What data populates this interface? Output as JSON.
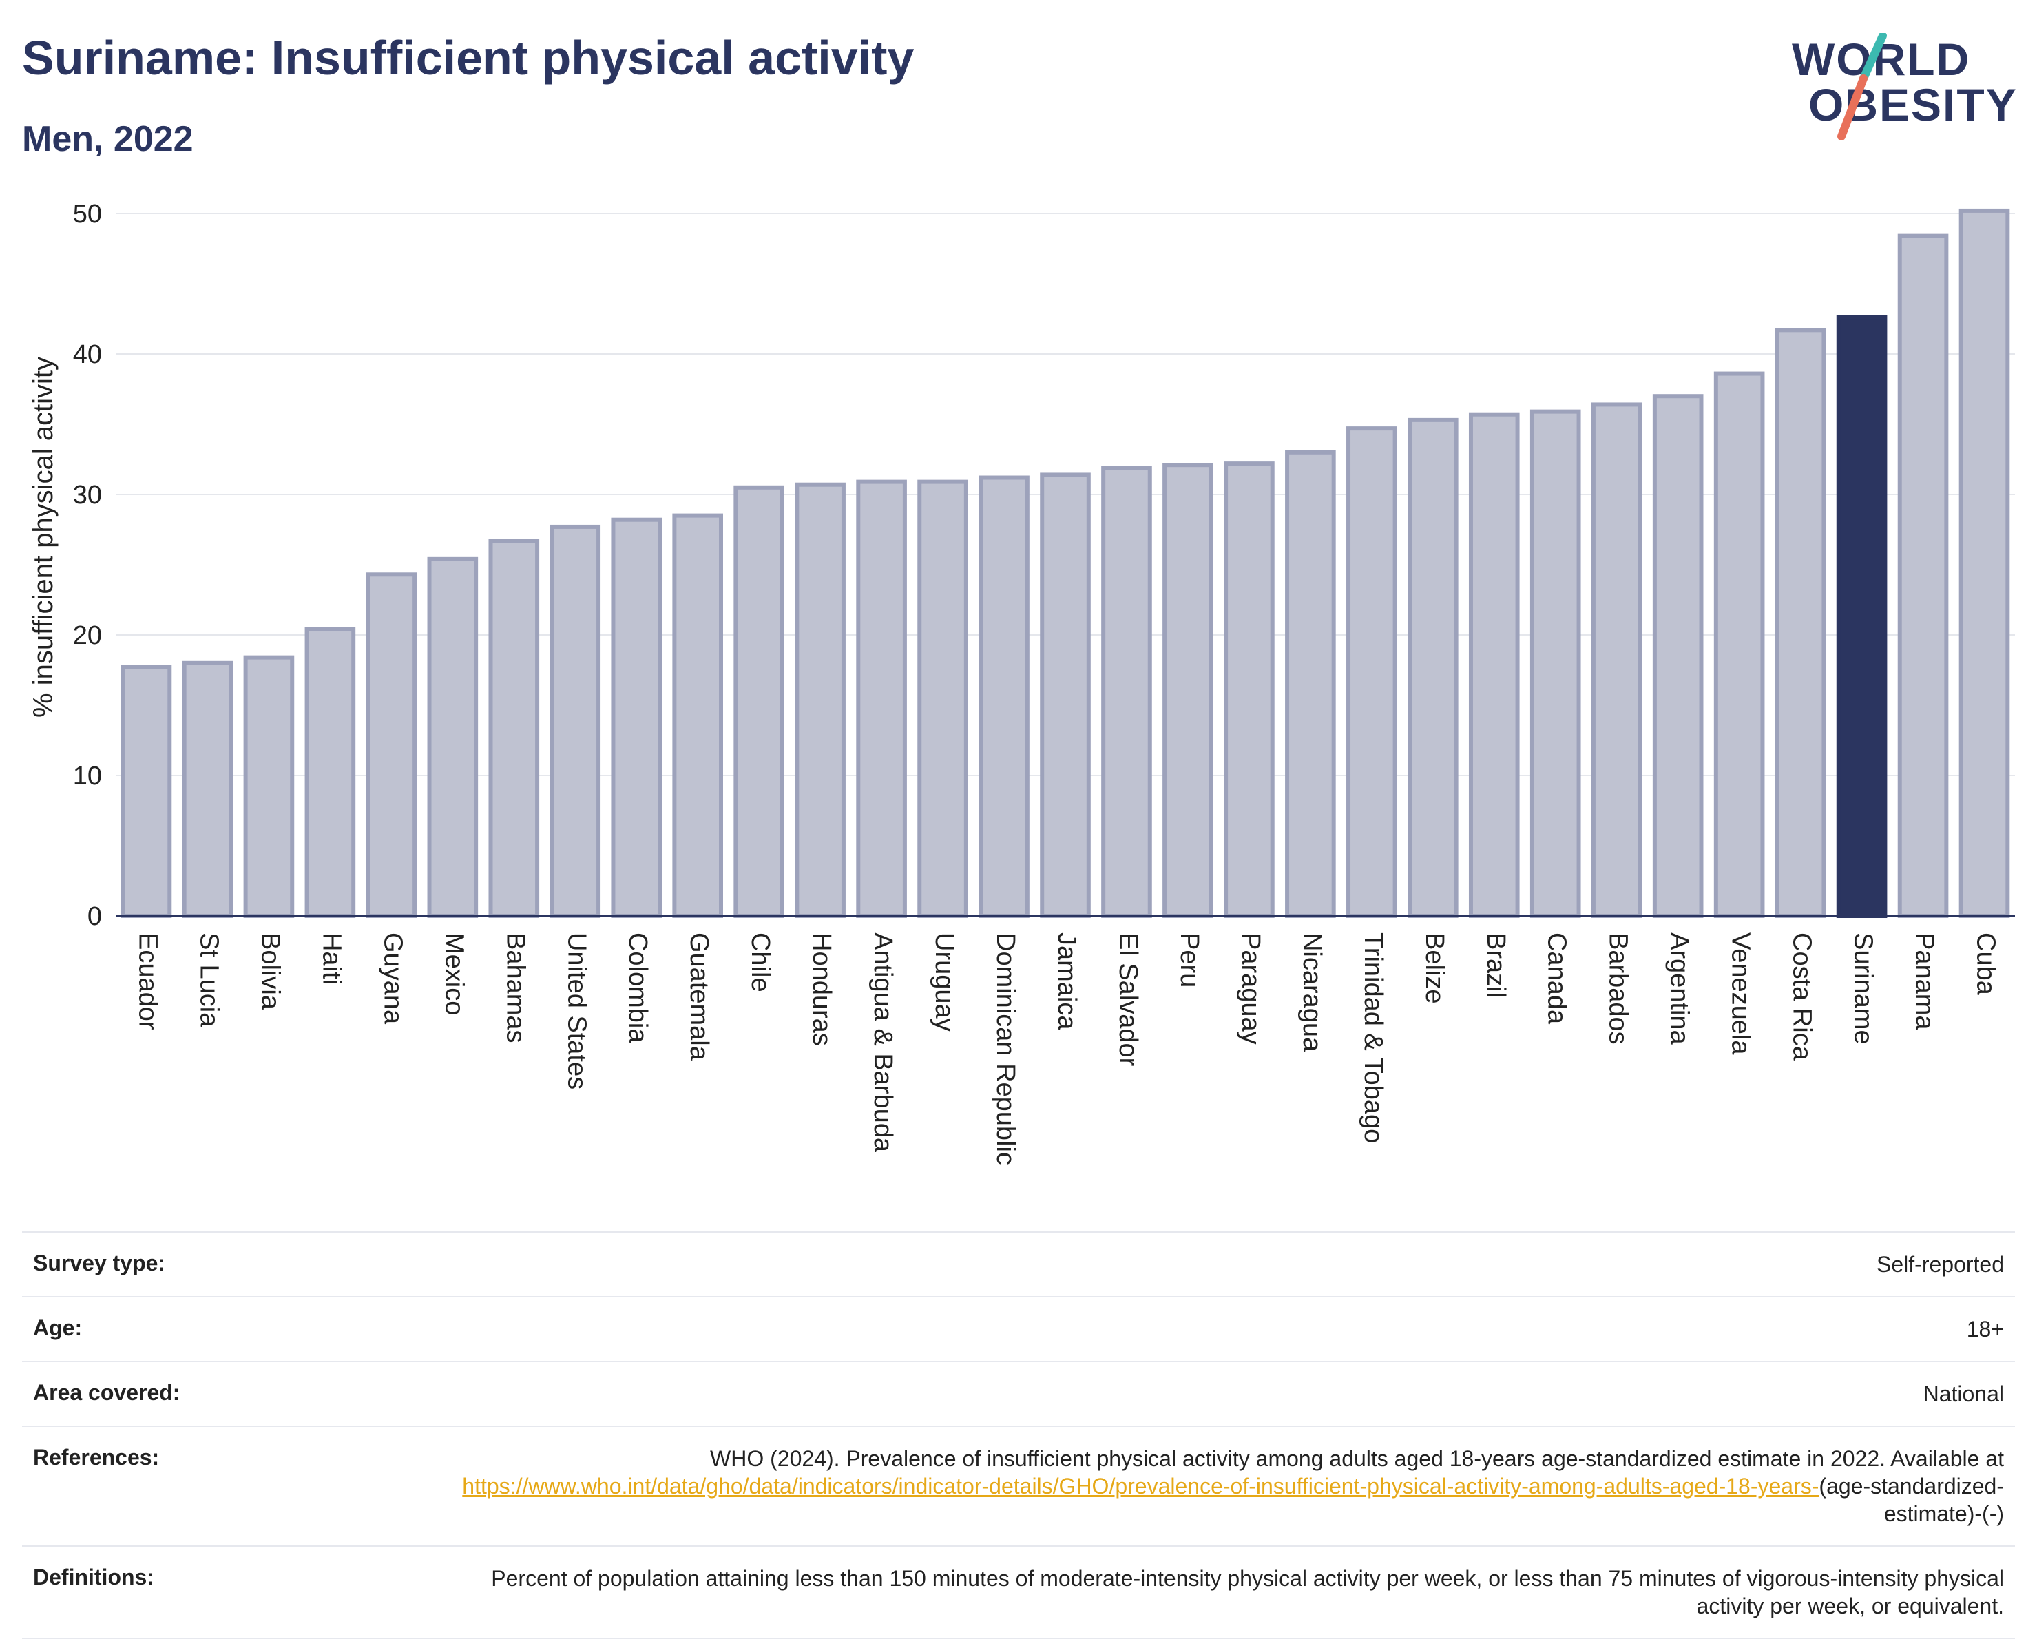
{
  "title": "Suriname: Insufficient physical activity",
  "subtitle": "Men, 2022",
  "logo": {
    "line1": "WORLD",
    "line2": "OBESITY"
  },
  "colors": {
    "highlight": "#2b3560",
    "bar_fill": "#bfc2d1",
    "bar_stroke": "#9da2bb",
    "title": "#2b3560",
    "link": "#e6a817"
  },
  "chart_data": {
    "type": "bar",
    "ylabel": "% insufficient physical activity",
    "ylim": [
      0,
      50
    ],
    "yticks": [
      0,
      10,
      20,
      30,
      40,
      50
    ],
    "grid": true,
    "highlight": "Suriname",
    "categories": [
      "Ecuador",
      "St Lucia",
      "Bolivia",
      "Haiti",
      "Guyana",
      "Mexico",
      "Bahamas",
      "United States",
      "Colombia",
      "Guatemala",
      "Chile",
      "Honduras",
      "Antigua & Barbuda",
      "Uruguay",
      "Dominican Republic",
      "Jamaica",
      "El Salvador",
      "Peru",
      "Paraguay",
      "Nicaragua",
      "Trinidad & Tobago",
      "Belize",
      "Brazil",
      "Canada",
      "Barbados",
      "Argentina",
      "Venezuela",
      "Costa Rica",
      "Suriname",
      "Panama",
      "Cuba"
    ],
    "values": [
      17.7,
      18.0,
      18.4,
      20.4,
      24.3,
      25.4,
      26.7,
      27.7,
      28.2,
      28.5,
      30.5,
      30.7,
      30.9,
      30.9,
      31.2,
      31.4,
      31.9,
      32.1,
      32.2,
      33.0,
      34.7,
      35.3,
      35.7,
      35.9,
      36.4,
      37.0,
      38.6,
      41.7,
      42.6,
      48.4,
      50.2
    ]
  },
  "meta": {
    "survey_label": "Survey type:",
    "survey_value": "Self-reported",
    "age_label": "Age:",
    "age_value": "18+",
    "area_label": "Area covered:",
    "area_value": "National",
    "ref_label": "References:",
    "ref_text": "WHO (2024). Prevalence of insufficient physical activity among adults aged 18-years age-standardized estimate in 2022. Available at",
    "ref_link": "https://www.who.int/data/gho/data/indicators/indicator-details/GHO/prevalence-of-insufficient-physical-activity-among-adults-aged-18-years-",
    "ref_tail": "(age-standardized-estimate)-(-)",
    "def_label": "Definitions:",
    "def_value": "Percent of population attaining less than 150 minutes of moderate-intensity physical activity per week, or less than 75 minutes of vigorous-intensity physical activity per week, or equivalent."
  }
}
